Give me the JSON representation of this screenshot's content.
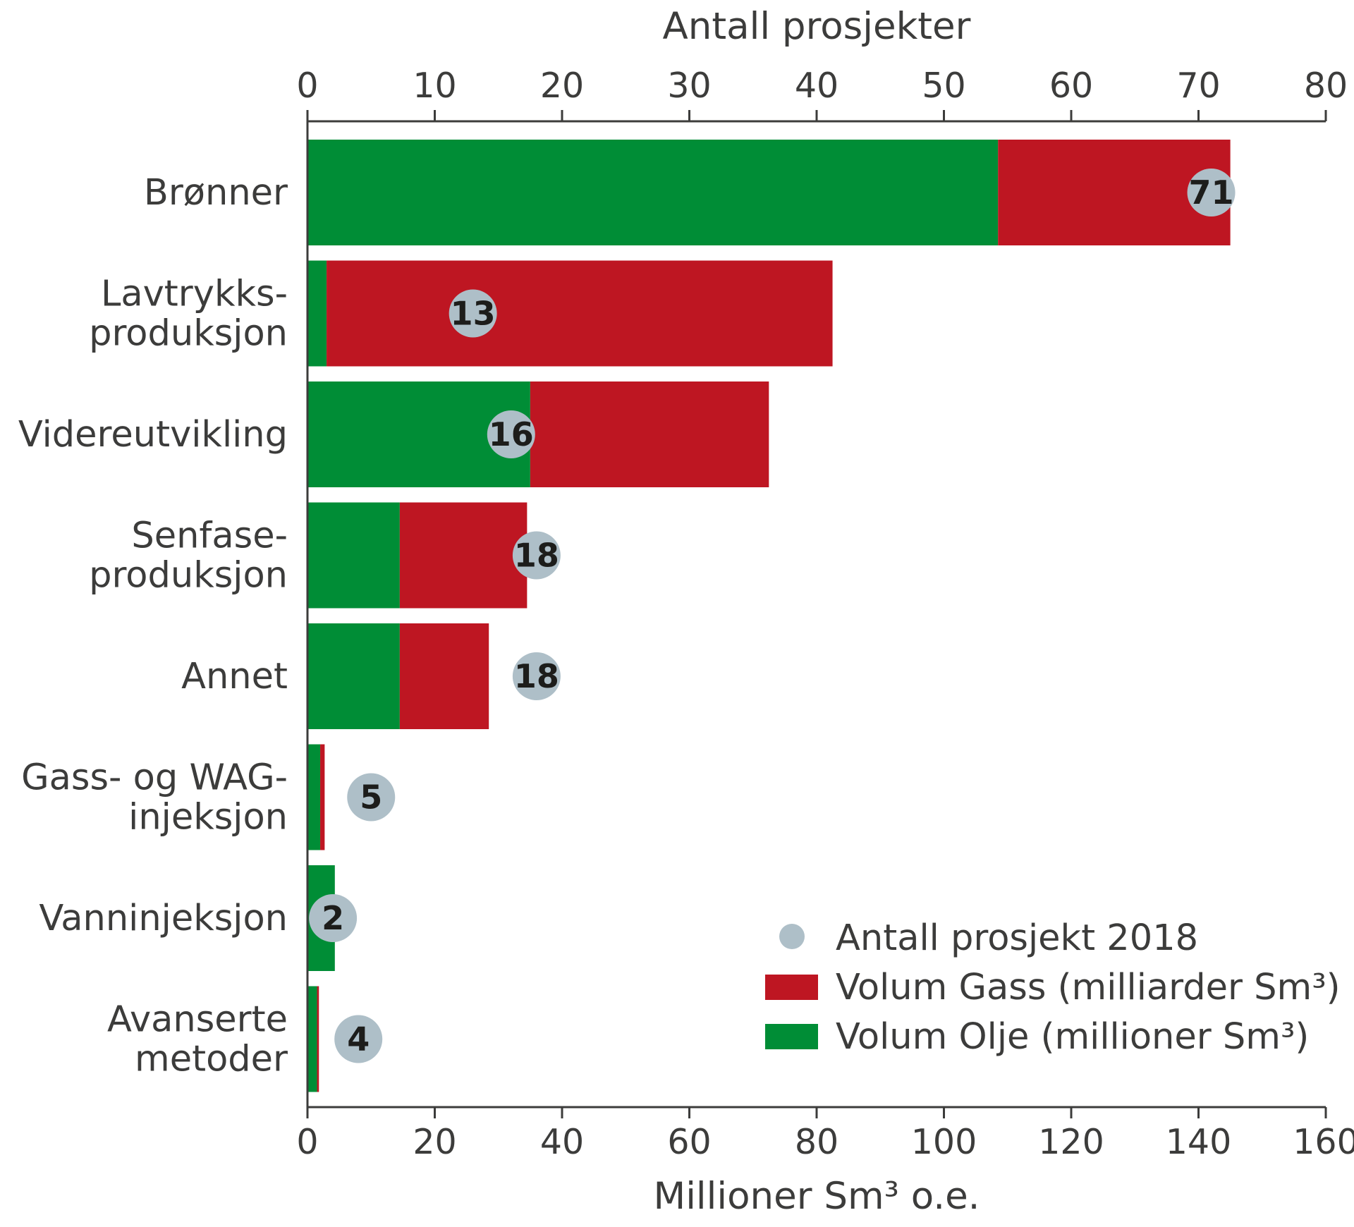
{
  "chart_data": {
    "type": "bar",
    "orientation": "horizontal",
    "stacked": true,
    "categories": [
      [
        "Brønner"
      ],
      [
        "Lavtrykks-",
        "produksjon"
      ],
      [
        "Videreutvikling"
      ],
      [
        "Senfase-",
        "produksjon"
      ],
      [
        "Annet"
      ],
      [
        "Gass- og WAG-",
        "injeksjon"
      ],
      [
        "Vanninjeksjon"
      ],
      [
        "Avanserte",
        "metoder"
      ]
    ],
    "series": [
      {
        "name": "Volum Olje (millioner Sm³)",
        "color": "#008d36",
        "values": [
          108.5,
          3,
          35,
          14.5,
          14.5,
          2,
          4.3,
          1.5
        ]
      },
      {
        "name": "Volum Gass (milliarder Sm³)",
        "color": "#be1622",
        "values": [
          36.5,
          79.5,
          37.5,
          20,
          14,
          0.7,
          0,
          0.3
        ]
      }
    ],
    "points": {
      "name": "Antall prosjekt 2018",
      "color": "#aebfc8",
      "values": [
        71,
        13,
        16,
        18,
        18,
        5,
        2,
        4
      ]
    },
    "bottom_axis": {
      "title": "Millioner Sm³ o.e.",
      "range": [
        0,
        160
      ],
      "ticks": [
        "0",
        "20",
        "40",
        "60",
        "80",
        "100",
        "120",
        "140",
        "160"
      ]
    },
    "top_axis": {
      "title": "Antall prosjekter",
      "range": [
        0,
        80
      ],
      "ticks": [
        "0",
        "10",
        "20",
        "30",
        "40",
        "50",
        "60",
        "70",
        "80"
      ]
    },
    "legend": {
      "position": "bottom-right",
      "items": [
        "Antall prosjekt 2018",
        "Volum Gass (milliarder Sm³)",
        "Volum Olje (millioner Sm³)"
      ]
    },
    "grid": false
  }
}
